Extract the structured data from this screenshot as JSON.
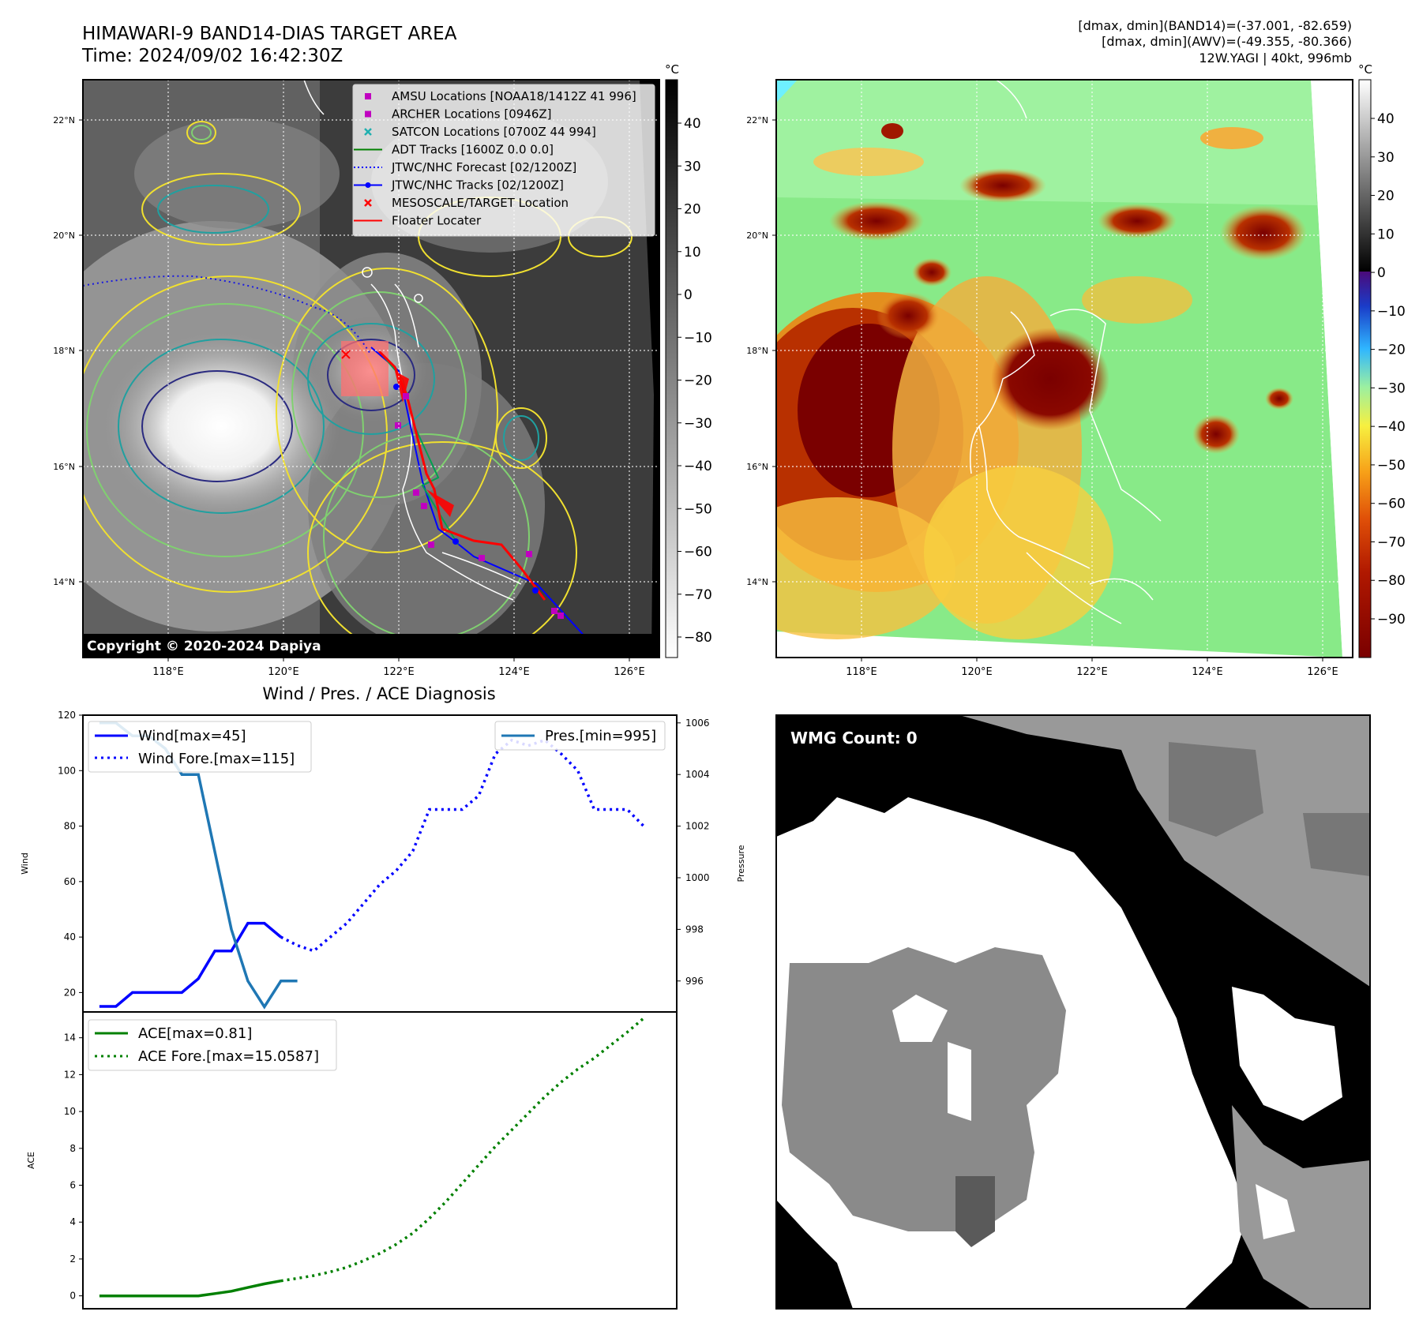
{
  "header": {
    "title_line1": "HIMAWARI-9 BAND14-DIAS TARGET AREA",
    "title_line2": "Time: 2024/09/02 16:42:30Z",
    "stats_line1": "[dmax, dmin](BAND14)=(-37.001, -82.659)",
    "stats_line2": "[dmax, dmin](AWV)=(-49.355, -80.366)",
    "stats_line3": "12W.YAGI | 40kt, 996mb"
  },
  "map_axes": {
    "lon_ticks": [
      "118°E",
      "120°E",
      "122°E",
      "124°E",
      "126°E"
    ],
    "lat_ticks": [
      "22°N",
      "20°N",
      "18°N",
      "16°N",
      "14°N"
    ]
  },
  "colorbar1": {
    "unit": "°C",
    "ticks": [
      "40",
      "30",
      "20",
      "10",
      "0",
      "−10",
      "−20",
      "−30",
      "−40",
      "−50",
      "−60",
      "−70",
      "−80"
    ]
  },
  "colorbar2": {
    "unit": "°C",
    "ticks": [
      "40",
      "30",
      "20",
      "10",
      "0",
      "−10",
      "−20",
      "−30",
      "−40",
      "−50",
      "−60",
      "−70",
      "−80",
      "−90"
    ]
  },
  "legend_map": [
    {
      "label": "AMSU Locations [NOAA18/1412Z 41 996]",
      "color": "#c000c0",
      "marker": "square"
    },
    {
      "label": "ARCHER Locations [0946Z]",
      "color": "#c000c0",
      "marker": "square"
    },
    {
      "label": "SATCON Locations [0700Z 44 994]",
      "color": "#20b0b0",
      "marker": "x"
    },
    {
      "label": "ADT Tracks [1600Z 0.0 0.0]",
      "color": "#008000",
      "marker": "line"
    },
    {
      "label": "JTWC/NHC Forecast [02/1200Z]",
      "color": "#0000ff",
      "marker": "dotted"
    },
    {
      "label": "JTWC/NHC Tracks [02/1200Z]",
      "color": "#0000ff",
      "marker": "line-dot"
    },
    {
      "label": "MESOSCALE/TARGET Location",
      "color": "#ff0000",
      "marker": "x"
    },
    {
      "label": "Floater Locater",
      "color": "#ff0000",
      "marker": "line"
    }
  ],
  "copyright": "Copyright © 2020-2024 Dapiya",
  "wmg_label": "WMG Count: 0",
  "diag_title": "Wind / Pres. / ACE Diagnosis",
  "chart_data": [
    {
      "type": "line",
      "title": "Wind / Pres. / ACE Diagnosis",
      "ylabel": "Wind",
      "y2label": "Pressure",
      "ylim": [
        13,
        120
      ],
      "y2lim": [
        994.8,
        1006.3
      ],
      "yticks": [
        "120",
        "100",
        "80",
        "60",
        "40",
        "20"
      ],
      "y2ticks": [
        "1006",
        "1004",
        "1002",
        "1000",
        "998",
        "996"
      ],
      "series": [
        {
          "name": "Wind[max=45]",
          "color": "#0000ff",
          "style": "solid",
          "points": [
            [
              0,
              15
            ],
            [
              1,
              15
            ],
            [
              2,
              20
            ],
            [
              3,
              20
            ],
            [
              4,
              20
            ],
            [
              5,
              20
            ],
            [
              6,
              25
            ],
            [
              7,
              35
            ],
            [
              8,
              35
            ],
            [
              9,
              45
            ],
            [
              10,
              45
            ],
            [
              11,
              40
            ]
          ]
        },
        {
          "name": "Wind Fore.[max=115]",
          "color": "#0000ff",
          "style": "dotted",
          "points": [
            [
              11,
              40
            ],
            [
              12,
              37
            ],
            [
              13,
              35
            ],
            [
              14,
              40
            ],
            [
              15,
              45
            ],
            [
              16,
              52
            ],
            [
              17,
              59
            ],
            [
              18,
              64
            ],
            [
              19,
              71
            ],
            [
              20,
              86
            ],
            [
              21,
              86
            ],
            [
              22,
              86
            ],
            [
              23,
              91
            ],
            [
              24,
              106
            ],
            [
              25,
              111
            ],
            [
              26,
              109
            ],
            [
              27,
              111
            ],
            [
              28,
              106
            ],
            [
              29,
              100
            ],
            [
              30,
              86
            ],
            [
              31,
              86
            ],
            [
              32,
              86
            ],
            [
              33,
              80
            ]
          ]
        },
        {
          "name": "Pres.[min=995]",
          "color": "#1f77b4",
          "style": "solid",
          "axis": "right",
          "points": [
            [
              0,
              1006
            ],
            [
              1,
              1006
            ],
            [
              2,
              1005.5
            ],
            [
              3,
              1005.5
            ],
            [
              4,
              1005
            ],
            [
              5,
              1004
            ],
            [
              6,
              1004
            ],
            [
              7,
              1001
            ],
            [
              8,
              998
            ],
            [
              9,
              996
            ],
            [
              10,
              995
            ],
            [
              11,
              996
            ],
            [
              12,
              996
            ]
          ]
        }
      ]
    },
    {
      "type": "line",
      "ylabel": "ACE",
      "ylim": [
        -0.7,
        15.4
      ],
      "yticks": [
        "14",
        "12",
        "10",
        "8",
        "6",
        "4",
        "2",
        "0"
      ],
      "series": [
        {
          "name": "ACE[max=0.81]",
          "color": "#008000",
          "style": "solid",
          "points": [
            [
              0,
              0
            ],
            [
              1,
              0
            ],
            [
              2,
              0
            ],
            [
              3,
              0
            ],
            [
              4,
              0
            ],
            [
              5,
              0
            ],
            [
              6,
              0
            ],
            [
              7,
              0.12
            ],
            [
              8,
              0.25
            ],
            [
              9,
              0.45
            ],
            [
              10,
              0.65
            ],
            [
              11,
              0.81
            ]
          ]
        },
        {
          "name": "ACE Fore.[max=15.0587]",
          "color": "#008000",
          "style": "dotted",
          "points": [
            [
              11,
              0.81
            ],
            [
              12,
              0.95
            ],
            [
              13,
              1.1
            ],
            [
              14,
              1.3
            ],
            [
              15,
              1.55
            ],
            [
              16,
              1.9
            ],
            [
              17,
              2.3
            ],
            [
              18,
              2.8
            ],
            [
              19,
              3.4
            ],
            [
              20,
              4.2
            ],
            [
              21,
              5.1
            ],
            [
              22,
              6.1
            ],
            [
              23,
              7.1
            ],
            [
              24,
              8.1
            ],
            [
              25,
              9.0
            ],
            [
              26,
              9.9
            ],
            [
              27,
              10.8
            ],
            [
              28,
              11.6
            ],
            [
              29,
              12.3
            ],
            [
              30,
              12.9
            ],
            [
              31,
              13.6
            ],
            [
              32,
              14.3
            ],
            [
              33,
              15.06
            ]
          ]
        }
      ]
    }
  ]
}
